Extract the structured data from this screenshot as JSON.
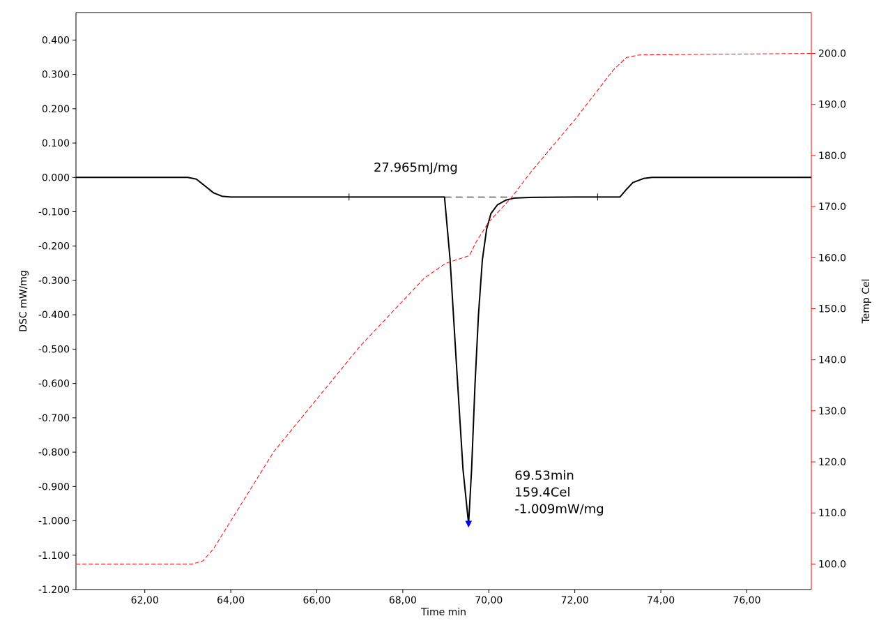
{
  "colors": {
    "dsc": "#000000",
    "temp": "#ff0000",
    "peak_marker": "#0000ff",
    "axes": "#000000",
    "right_axis": "#ff0000"
  },
  "chart_data": {
    "type": "line",
    "xlabel": "Time min",
    "ylabel": "DSC mW/mg",
    "y2label": "Temp Cel",
    "xlim": [
      60.4,
      77.5
    ],
    "ylim": [
      -1.2,
      0.48
    ],
    "y2lim": [
      95.0,
      208.0
    ],
    "x_ticks": [
      {
        "v": 62,
        "label": "62,00"
      },
      {
        "v": 64,
        "label": "64,00"
      },
      {
        "v": 66,
        "label": "66,00"
      },
      {
        "v": 68,
        "label": "68,00"
      },
      {
        "v": 70,
        "label": "70,00"
      },
      {
        "v": 72,
        "label": "72,00"
      },
      {
        "v": 74,
        "label": "74,00"
      },
      {
        "v": 76,
        "label": "76,00"
      }
    ],
    "y_ticks": [
      {
        "v": 0.4,
        "label": "0.400"
      },
      {
        "v": 0.3,
        "label": "0.300"
      },
      {
        "v": 0.2,
        "label": "0.200"
      },
      {
        "v": 0.1,
        "label": "0.100"
      },
      {
        "v": 0.0,
        "label": "0.000"
      },
      {
        "v": -0.1,
        "label": "-0.100"
      },
      {
        "v": -0.2,
        "label": "-0.200"
      },
      {
        "v": -0.3,
        "label": "-0.300"
      },
      {
        "v": -0.4,
        "label": "-0.400"
      },
      {
        "v": -0.5,
        "label": "-0.500"
      },
      {
        "v": -0.6,
        "label": "-0.600"
      },
      {
        "v": -0.7,
        "label": "-0.700"
      },
      {
        "v": -0.8,
        "label": "-0.800"
      },
      {
        "v": -0.9,
        "label": "-0.900"
      },
      {
        "v": -1.0,
        "label": "-1.000"
      },
      {
        "v": -1.1,
        "label": "-1.100"
      },
      {
        "v": -1.2,
        "label": "-1.200"
      }
    ],
    "y2_ticks": [
      {
        "v": 200,
        "label": "200.0"
      },
      {
        "v": 190,
        "label": "190.0"
      },
      {
        "v": 180,
        "label": "180.0"
      },
      {
        "v": 170,
        "label": "170.0"
      },
      {
        "v": 160,
        "label": "160.0"
      },
      {
        "v": 150,
        "label": "150.0"
      },
      {
        "v": 140,
        "label": "140.0"
      },
      {
        "v": 130,
        "label": "130.0"
      },
      {
        "v": 120,
        "label": "120.0"
      },
      {
        "v": 110,
        "label": "110.0"
      },
      {
        "v": 100,
        "label": "100.0"
      }
    ],
    "series": [
      {
        "axis": "left",
        "style": "solid",
        "color": "#000000",
        "points": [
          [
            60.4,
            0.0
          ],
          [
            63.0,
            0.0
          ],
          [
            63.2,
            -0.005
          ],
          [
            63.4,
            -0.025
          ],
          [
            63.6,
            -0.045
          ],
          [
            63.8,
            -0.055
          ],
          [
            64.0,
            -0.057
          ],
          [
            66.0,
            -0.057
          ],
          [
            68.0,
            -0.057
          ],
          [
            68.97,
            -0.057
          ],
          [
            69.1,
            -0.24
          ],
          [
            69.25,
            -0.55
          ],
          [
            69.4,
            -0.85
          ],
          [
            69.53,
            -1.009
          ],
          [
            69.6,
            -0.85
          ],
          [
            69.68,
            -0.6
          ],
          [
            69.76,
            -0.4
          ],
          [
            69.85,
            -0.24
          ],
          [
            69.95,
            -0.15
          ],
          [
            70.05,
            -0.105
          ],
          [
            70.2,
            -0.08
          ],
          [
            70.4,
            -0.066
          ],
          [
            70.6,
            -0.06
          ],
          [
            71.0,
            -0.058
          ],
          [
            72.0,
            -0.057
          ],
          [
            73.05,
            -0.057
          ],
          [
            73.2,
            -0.035
          ],
          [
            73.35,
            -0.015
          ],
          [
            73.6,
            -0.003
          ],
          [
            73.8,
            0.0
          ],
          [
            77.5,
            0.0
          ]
        ]
      },
      {
        "axis": "right",
        "style": "dashed",
        "color": "#ff0000",
        "points": [
          [
            60.4,
            100.0
          ],
          [
            63.1,
            100.0
          ],
          [
            63.35,
            100.6
          ],
          [
            63.6,
            103.0
          ],
          [
            65.0,
            122.0
          ],
          [
            67.0,
            142.6
          ],
          [
            68.5,
            156.0
          ],
          [
            69.0,
            158.9
          ],
          [
            69.55,
            160.4
          ],
          [
            69.7,
            163.0
          ],
          [
            70.0,
            167.0
          ],
          [
            70.5,
            171.5
          ],
          [
            71.0,
            177.0
          ],
          [
            72.0,
            187.0
          ],
          [
            72.9,
            196.8
          ],
          [
            73.2,
            199.2
          ],
          [
            73.5,
            199.7
          ],
          [
            77.5,
            200.0
          ]
        ]
      }
    ],
    "baseline": {
      "x": [
        68.97,
        70.5
      ],
      "y": -0.057
    },
    "baseline_marks_x": [
      66.75,
      72.53
    ],
    "peak": {
      "x": 69.53,
      "y": -1.009
    },
    "annotations": {
      "area": {
        "text": "27.965mJ/mg",
        "x": 68.3,
        "y": 0.017
      },
      "peak_lines": [
        "69.53min",
        "159.4Cel",
        "-1.009mW/mg"
      ],
      "peak_label_x": 70.6,
      "peak_label_y": -0.88
    }
  }
}
